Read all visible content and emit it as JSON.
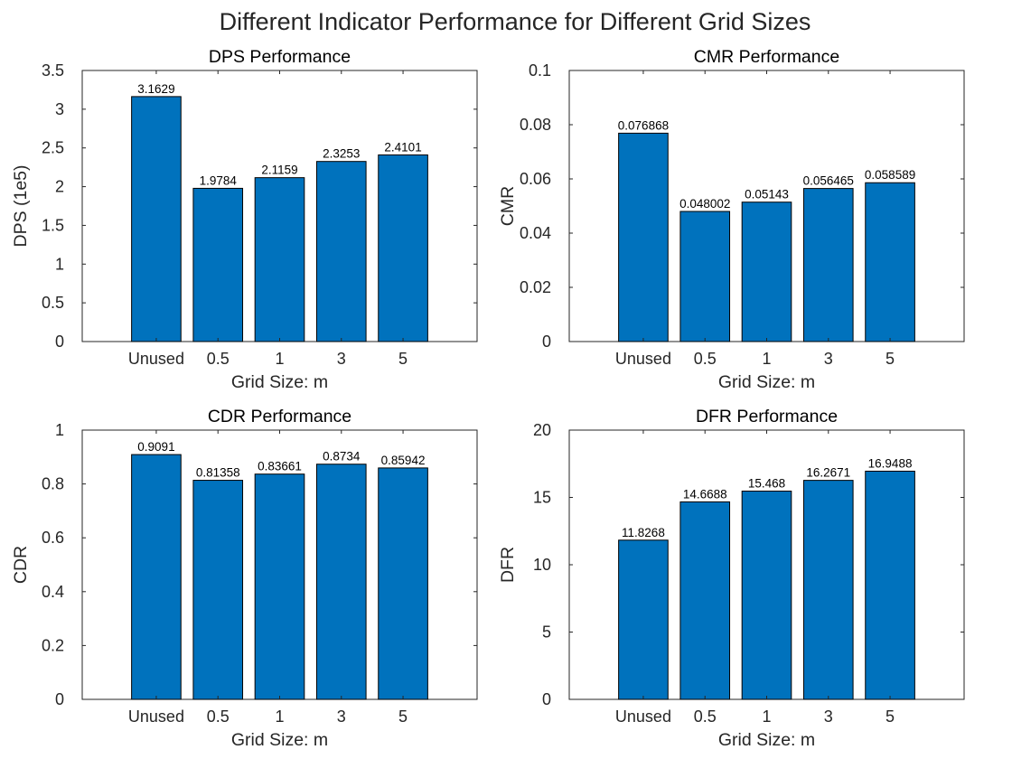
{
  "figure_title": "Different Indicator Performance for Different Grid Sizes",
  "bar_color": "#0072BD",
  "chart_data": [
    {
      "type": "bar",
      "title": "DPS Performance",
      "xlabel": "Grid Size: m",
      "ylabel": "DPS (1e5)",
      "categories": [
        "Unused",
        "0.5",
        "1",
        "3",
        "5"
      ],
      "values": [
        3.1629,
        1.9784,
        2.1159,
        2.3253,
        2.4101
      ],
      "value_labels": [
        "3.1629",
        "1.9784",
        "2.1159",
        "2.3253",
        "2.4101"
      ],
      "ylim": [
        0,
        3.5
      ],
      "yticks": [
        0,
        0.5,
        1,
        1.5,
        2,
        2.5,
        3,
        3.5
      ],
      "ytick_labels": [
        "0",
        "0.5",
        "1",
        "1.5",
        "2",
        "2.5",
        "3",
        "3.5"
      ],
      "grid": false
    },
    {
      "type": "bar",
      "title": "CMR Performance",
      "xlabel": "Grid Size: m",
      "ylabel": "CMR",
      "categories": [
        "Unused",
        "0.5",
        "1",
        "3",
        "5"
      ],
      "values": [
        0.076868,
        0.048002,
        0.05143,
        0.056465,
        0.058589
      ],
      "value_labels": [
        "0.076868",
        "0.048002",
        "0.05143",
        "0.056465",
        "0.058589"
      ],
      "ylim": [
        0,
        0.1
      ],
      "yticks": [
        0,
        0.02,
        0.04,
        0.06,
        0.08,
        0.1
      ],
      "ytick_labels": [
        "0",
        "0.02",
        "0.04",
        "0.06",
        "0.08",
        "0.1"
      ],
      "grid": false
    },
    {
      "type": "bar",
      "title": "CDR Performance",
      "xlabel": "Grid Size: m",
      "ylabel": "CDR",
      "categories": [
        "Unused",
        "0.5",
        "1",
        "3",
        "5"
      ],
      "values": [
        0.9091,
        0.81358,
        0.83661,
        0.8734,
        0.85942
      ],
      "value_labels": [
        "0.9091",
        "0.81358",
        "0.83661",
        "0.8734",
        "0.85942"
      ],
      "ylim": [
        0,
        1
      ],
      "yticks": [
        0,
        0.2,
        0.4,
        0.6,
        0.8,
        1
      ],
      "ytick_labels": [
        "0",
        "0.2",
        "0.4",
        "0.6",
        "0.8",
        "1"
      ],
      "grid": false
    },
    {
      "type": "bar",
      "title": "DFR Performance",
      "xlabel": "Grid Size: m",
      "ylabel": "DFR",
      "categories": [
        "Unused",
        "0.5",
        "1",
        "3",
        "5"
      ],
      "values": [
        11.8268,
        14.6688,
        15.468,
        16.2671,
        16.9488
      ],
      "value_labels": [
        "11.8268",
        "14.6688",
        "15.468",
        "16.2671",
        "16.9488"
      ],
      "ylim": [
        0,
        20
      ],
      "yticks": [
        0,
        5,
        10,
        15,
        20
      ],
      "ytick_labels": [
        "0",
        "5",
        "10",
        "15",
        "20"
      ],
      "grid": false
    }
  ]
}
